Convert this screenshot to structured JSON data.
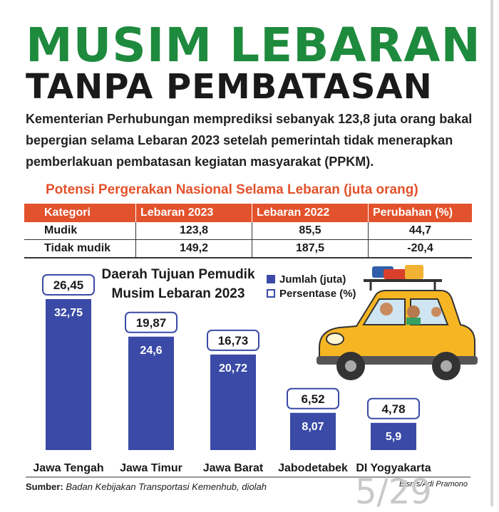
{
  "header": {
    "title": "MUSIM LEBARAN",
    "subtitle": "TANPA PEMBATASAN",
    "intro": "Kementerian Perhubungan memprediksi sebanyak 123,8 juta orang bakal bepergian selama Lebaran 2023 setelah pemerintah tidak menerapkan pemberlakuan pembatasan kegiatan masyarakat (PPKM)."
  },
  "table": {
    "title": "Potensi Pergerakan Nasional Selama Lebaran (juta orang)",
    "headers": [
      "Kategori",
      "Lebaran 2023",
      "Lebaran 2022",
      "Perubahan (%)"
    ],
    "rows": [
      [
        "Mudik",
        "123,8",
        "85,5",
        "44,7"
      ],
      [
        "Tidak mudik",
        "149,2",
        "187,5",
        "-20,4"
      ]
    ]
  },
  "chart_data": {
    "type": "bar",
    "title": "Daerah Tujuan Pemudik Musim Lebaran 2023",
    "categories": [
      "Jawa Tengah",
      "Jawa Timur",
      "Jawa Barat",
      "Jabodetabek",
      "DI Yogyakarta"
    ],
    "series": [
      {
        "name": "Jumlah (juta)",
        "values": [
          32.75,
          24.6,
          20.72,
          8.07,
          5.9
        ],
        "labels": [
          "32,75",
          "24,6",
          "20,72",
          "8,07",
          "5,9"
        ]
      },
      {
        "name": "Persentase (%)",
        "values": [
          26.45,
          19.87,
          16.73,
          6.52,
          4.78
        ],
        "labels": [
          "26,45",
          "19,87",
          "16,73",
          "6,52",
          "4,78"
        ]
      }
    ],
    "legend": [
      "Jumlah (juta)",
      "Persentase (%)"
    ],
    "legend_position": "top-right",
    "grid": false,
    "ylim": [
      0,
      32.75
    ]
  },
  "footer": {
    "source_label": "Sumber:",
    "source_text": " Badan Kebijakan Transportasi Kemenhub, diolah",
    "credit": "Bisnis/Adi Pramono",
    "page": "5/29"
  },
  "colors": {
    "title_green": "#1e8a3d",
    "accent_orange": "#e2522c",
    "bar_blue": "#3a4aa6",
    "car_yellow": "#f6b623"
  },
  "illustration": {
    "icon": "car-family-icon"
  }
}
